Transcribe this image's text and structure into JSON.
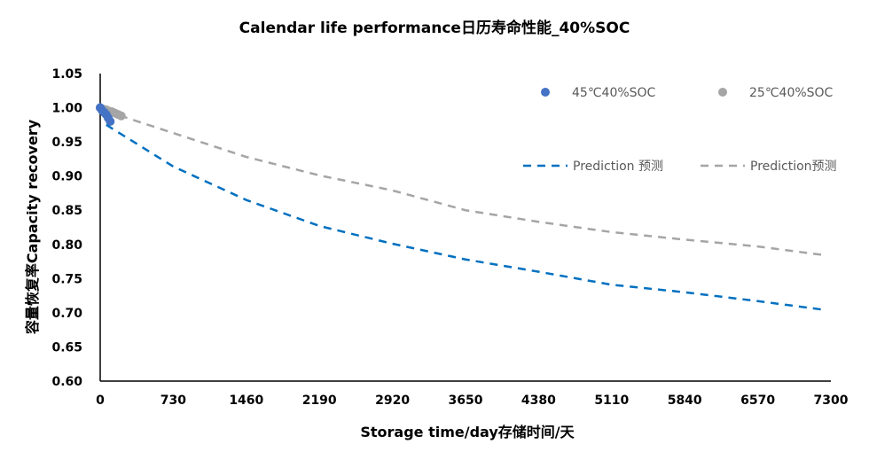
{
  "chart_data": {
    "type": "scatter",
    "title": "Calendar life performance日历寿命性能_40%SOC",
    "xlabel": "Storage time/day存储时间/天",
    "ylabel": "容量恢复率Capacity recovery",
    "xlim": [
      0,
      7300
    ],
    "ylim": [
      0.6,
      1.05
    ],
    "xticks": [
      "0",
      "730",
      "1460",
      "2190",
      "2920",
      "3650",
      "4380",
      "5110",
      "5840",
      "6570",
      "7300"
    ],
    "yticks": [
      "0.60",
      "0.65",
      "0.70",
      "0.75",
      "0.80",
      "0.85",
      "0.90",
      "0.95",
      "1.00",
      "1.05"
    ],
    "grid": false,
    "legend_placement": "top-right",
    "series": [
      {
        "name": "45℃40%SOC",
        "kind": "scatter",
        "color": "#4472C4",
        "x": [
          0,
          20,
          40,
          60,
          80,
          100
        ],
        "y": [
          1.0,
          0.996,
          0.993,
          0.99,
          0.985,
          0.98
        ]
      },
      {
        "name": "25℃40%SOC",
        "kind": "scatter",
        "color": "#A5A5A5",
        "x": [
          0,
          30,
          60,
          90,
          120,
          150,
          180,
          210
        ],
        "y": [
          1.0,
          0.998,
          0.997,
          0.995,
          0.994,
          0.992,
          0.99,
          0.988
        ]
      },
      {
        "name": "Prediction 预测",
        "kind": "line",
        "dash": true,
        "color": "#0070C0",
        "x": [
          60,
          730,
          1460,
          2190,
          2920,
          3650,
          4380,
          5110,
          5840,
          6570,
          7250
        ],
        "y": [
          0.975,
          0.914,
          0.865,
          0.827,
          0.801,
          0.778,
          0.76,
          0.741,
          0.73,
          0.717,
          0.704
        ]
      },
      {
        "name": "Prediction预测",
        "kind": "line",
        "dash": true,
        "color": "#A5A5A5",
        "x": [
          60,
          730,
          1460,
          2190,
          2920,
          3650,
          4380,
          5110,
          5840,
          6570,
          7250
        ],
        "y": [
          0.995,
          0.963,
          0.928,
          0.901,
          0.879,
          0.85,
          0.833,
          0.818,
          0.807,
          0.797,
          0.784
        ]
      }
    ]
  }
}
